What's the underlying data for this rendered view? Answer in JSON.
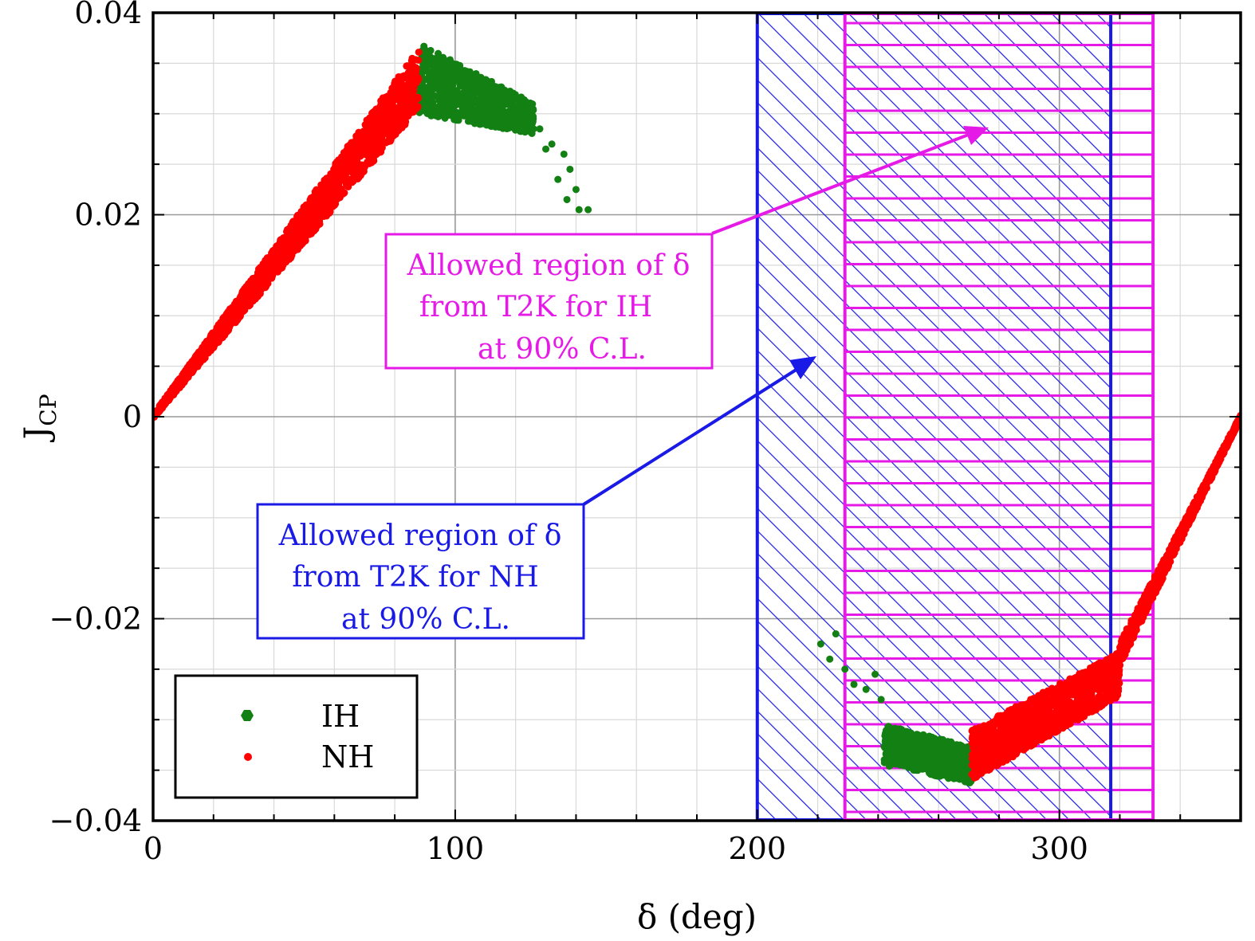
{
  "chart_data": {
    "type": "scatter",
    "title": "",
    "xlabel": "δ (deg)",
    "ylabel_main": "J",
    "ylabel_sub": "CP",
    "xlim": [
      0,
      360
    ],
    "ylim": [
      -0.04,
      0.04
    ],
    "x_ticks": [
      0,
      100,
      200,
      300
    ],
    "x_tick_labels": [
      "0",
      "100",
      "200",
      "300"
    ],
    "y_ticks": [
      -0.04,
      -0.02,
      0,
      0.02,
      0.04
    ],
    "y_tick_labels": [
      "−0.04",
      "−0.02",
      "0",
      "0.02",
      "0.04"
    ],
    "grid": true,
    "legend_position": "bottom-left",
    "series": [
      {
        "name": "IH",
        "color": "#138013",
        "bands": [
          {
            "x": [
              88,
              126
            ],
            "center_y": [
              0.0335,
              0.0295
            ],
            "half_width": [
              0.0035,
              0.0015
            ]
          },
          {
            "x": [
              242,
              271
            ],
            "center_y": [
              -0.0325,
              -0.0345
            ],
            "half_width": [
              0.002,
              0.0018
            ]
          }
        ],
        "outliers": [
          [
            128,
            0.0285
          ],
          [
            132,
            0.027
          ],
          [
            136,
            0.026
          ],
          [
            138,
            0.0245
          ],
          [
            134,
            0.0235
          ],
          [
            140,
            0.0225
          ],
          [
            137,
            0.0215
          ],
          [
            141,
            0.0205
          ],
          [
            144,
            0.0205
          ],
          [
            125,
            0.0295
          ],
          [
            130,
            0.0265
          ],
          [
            221,
            -0.0225
          ],
          [
            224,
            -0.024
          ],
          [
            226,
            -0.0215
          ],
          [
            229,
            -0.025
          ],
          [
            232,
            -0.0265
          ],
          [
            236,
            -0.027
          ],
          [
            239,
            -0.0255
          ],
          [
            241,
            -0.028
          ]
        ]
      },
      {
        "name": "NH",
        "color": "#ff0000",
        "bands": [
          {
            "x": [
              0,
              88
            ],
            "center_y": [
              0.0,
              0.0335
            ],
            "half_width": [
              0.0002,
              0.003
            ]
          },
          {
            "x": [
              271,
              320
            ],
            "center_y": [
              -0.0335,
              -0.0255
            ],
            "half_width": [
              0.0025,
              0.0022
            ]
          },
          {
            "x": [
              320,
              360
            ],
            "center_y": [
              -0.0235,
              0.0
            ],
            "half_width": [
              0.0012,
              0.0002
            ]
          }
        ],
        "outliers": []
      }
    ],
    "regions": [
      {
        "label": "NH",
        "x": [
          200,
          317
        ],
        "color": "#1a1ae6",
        "hatch": "diagonal"
      },
      {
        "label": "IH",
        "x": [
          229,
          331
        ],
        "color": "#e61ae6",
        "hatch": "horizontal"
      }
    ]
  },
  "annotations": {
    "ih": {
      "line1": "Allowed region of δ",
      "line2": "from T2K for IH",
      "line3": "at 90% C.L.",
      "color": "#e61ae6",
      "arrow_to": [
        278,
        0.029
      ]
    },
    "nh": {
      "line1": "Allowed region of δ",
      "line2": "from T2K for NH",
      "line3": "at 90% C.L.",
      "color": "#1a1ae6",
      "arrow_to": [
        220,
        0.0055
      ]
    }
  },
  "legend": {
    "ih_label": "IH",
    "nh_label": "NH"
  }
}
